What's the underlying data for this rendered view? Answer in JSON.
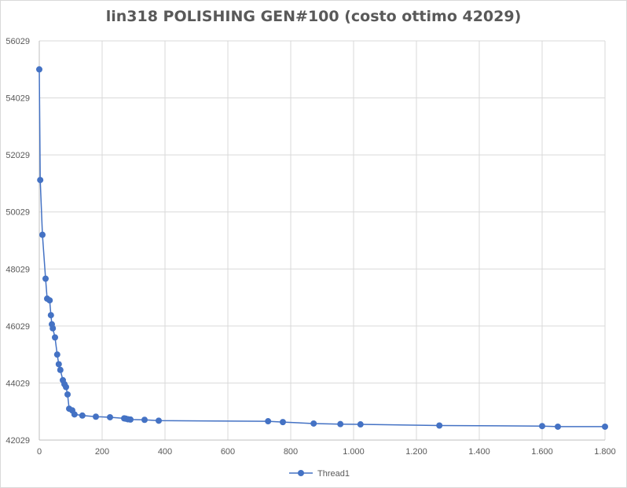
{
  "chart_data": {
    "type": "scatter",
    "title": "lin318 POLISHING GEN#100 (costo ottimo 42029)",
    "xlabel": "",
    "ylabel": "",
    "xlim": [
      0,
      1800
    ],
    "ylim": [
      42029,
      56029
    ],
    "x_ticks": [
      0,
      200,
      400,
      600,
      800,
      1000,
      1200,
      1400,
      1600,
      1800
    ],
    "x_tick_labels": [
      "0",
      "200",
      "400",
      "600",
      "800",
      "1.000",
      "1.200",
      "1.400",
      "1.600",
      "1.800"
    ],
    "y_ticks": [
      42029,
      44029,
      46029,
      48029,
      50029,
      52029,
      54029,
      56029
    ],
    "y_tick_labels": [
      "42029",
      "44029",
      "46029",
      "48029",
      "50029",
      "52029",
      "54029",
      "56029"
    ],
    "grid": true,
    "legend_position": "bottom",
    "lines_connected": true,
    "series": [
      {
        "name": "Thread1",
        "color": "#4472c4",
        "x": [
          0,
          3,
          10,
          20,
          25,
          33,
          37,
          40,
          43,
          50,
          57,
          62,
          67,
          75,
          80,
          85,
          90,
          95,
          105,
          112,
          137,
          180,
          225,
          270,
          275,
          282,
          290,
          335,
          380,
          728,
          775,
          873,
          958,
          1022,
          1273,
          1600,
          1650,
          1800
        ],
        "y": [
          55029,
          51149,
          49229,
          47689,
          46989,
          46929,
          46409,
          46089,
          45949,
          45629,
          45029,
          44689,
          44489,
          44129,
          43989,
          43889,
          43629,
          43129,
          43069,
          42929,
          42889,
          42849,
          42829,
          42789,
          42779,
          42759,
          42749,
          42739,
          42709,
          42689,
          42659,
          42609,
          42589,
          42579,
          42539,
          42519,
          42499,
          42499
        ]
      }
    ]
  }
}
